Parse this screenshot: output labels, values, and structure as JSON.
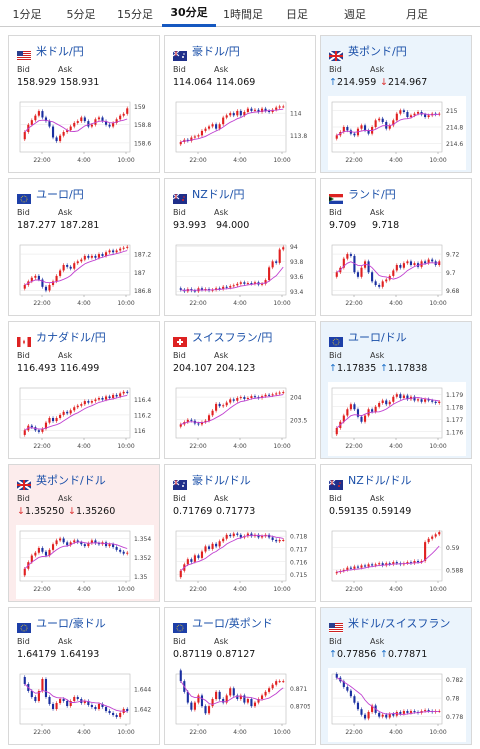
{
  "tabs": [
    "1分足",
    "5分足",
    "15分足",
    "30分足",
    "1時間足",
    "日足",
    "週足",
    "月足"
  ],
  "active_tab": 3,
  "bid_label": "Bid",
  "ask_label": "Ask",
  "colors": {
    "up": "#e02020",
    "down": "#1a2fa0",
    "ma": "#c040d0",
    "tab_active": "#1558c0",
    "highlight_up": "#ebf4fc",
    "highlight_down": "#fcecec"
  },
  "cards": [
    {
      "name": "米ドル/円",
      "flag": "us",
      "bid": "158.929",
      "ask": "158.931",
      "state": "none",
      "bid_arrow": "",
      "ask_arrow": "",
      "chart": {
        "xticks": [
          "22:00",
          "4:00",
          "10:00"
        ],
        "yticks": [
          "159",
          "158.8",
          "158.6"
        ],
        "ylim": [
          158.5,
          159.05
        ]
      }
    },
    {
      "name": "豪ドル/円",
      "flag": "au",
      "bid": "114.064",
      "ask": "114.069",
      "state": "none",
      "bid_arrow": "",
      "ask_arrow": "",
      "chart": {
        "xticks": [
          "22:00",
          "4:00",
          "10:00"
        ],
        "yticks": [
          "114",
          "113.8"
        ],
        "ylim": [
          113.65,
          114.1
        ]
      }
    },
    {
      "name": "英ポンド/円",
      "flag": "gb",
      "bid": "214.959",
      "ask": "214.967",
      "state": "up",
      "bid_arrow": "↑",
      "ask_arrow": "↓",
      "chart": {
        "xticks": [
          "22:00",
          "4:00",
          "10:00"
        ],
        "yticks": [
          "215",
          "214.8",
          "214.6"
        ],
        "ylim": [
          214.5,
          215.1
        ]
      }
    },
    {
      "name": "ユーロ/円",
      "flag": "eu",
      "bid": "187.277",
      "ask": "187.281",
      "state": "none",
      "bid_arrow": "",
      "ask_arrow": "",
      "chart": {
        "xticks": [
          "22:00",
          "4:00",
          "10:00"
        ],
        "yticks": [
          "187.2",
          "187",
          "186.8"
        ],
        "ylim": [
          186.75,
          187.3
        ]
      }
    },
    {
      "name": "NZドル/円",
      "flag": "nz",
      "bid": "93.993",
      "ask": "94.000",
      "state": "none",
      "bid_arrow": "",
      "ask_arrow": "",
      "chart": {
        "xticks": [
          "22:00",
          "4:00",
          "10:00"
        ],
        "yticks": [
          "94",
          "93.8",
          "93.6",
          "93.4"
        ],
        "ylim": [
          93.35,
          94.02
        ]
      }
    },
    {
      "name": "ランド/円",
      "flag": "za",
      "bid": "9.709",
      "ask": "9.718",
      "state": "none",
      "bid_arrow": "",
      "ask_arrow": "",
      "chart": {
        "xticks": [
          "22:00",
          "4:00",
          "10:00"
        ],
        "yticks": [
          "9.72",
          "9.7",
          "9.68"
        ],
        "ylim": [
          9.675,
          9.73
        ]
      }
    },
    {
      "name": "カナダドル/円",
      "flag": "ca",
      "bid": "116.493",
      "ask": "116.499",
      "state": "none",
      "bid_arrow": "",
      "ask_arrow": "",
      "chart": {
        "xticks": [
          "22:00",
          "4:00",
          "10:00"
        ],
        "yticks": [
          "116.4",
          "116.2",
          "116"
        ],
        "ylim": [
          115.9,
          116.55
        ]
      }
    },
    {
      "name": "スイスフラン/円",
      "flag": "ch",
      "bid": "204.107",
      "ask": "204.123",
      "state": "none",
      "bid_arrow": "",
      "ask_arrow": "",
      "chart": {
        "xticks": [
          "22:00",
          "4:00",
          "10:00"
        ],
        "yticks": [
          "204",
          "203.5"
        ],
        "ylim": [
          203.1,
          204.2
        ]
      }
    },
    {
      "name": "ユーロ/ドル",
      "flag": "eu",
      "bid": "1.17835",
      "ask": "1.17838",
      "state": "up",
      "bid_arrow": "↑",
      "ask_arrow": "↑",
      "chart": {
        "xticks": [
          "22:00",
          "4:00",
          "10:00"
        ],
        "yticks": [
          "1.179",
          "1.178",
          "1.177",
          "1.176"
        ],
        "ylim": [
          1.1755,
          1.1795
        ]
      }
    },
    {
      "name": "英ポンド/ドル",
      "flag": "gb",
      "bid": "1.35250",
      "ask": "1.35260",
      "state": "down",
      "bid_arrow": "↓",
      "ask_arrow": "↓",
      "chart": {
        "xticks": [
          "22:00",
          "4:00",
          "10:00"
        ],
        "yticks": [
          "1.354",
          "1.352",
          "1.35"
        ],
        "ylim": [
          1.3495,
          1.3548
        ]
      }
    },
    {
      "name": "豪ドル/ドル",
      "flag": "au",
      "bid": "0.71769",
      "ask": "0.71773",
      "state": "none",
      "bid_arrow": "",
      "ask_arrow": "",
      "chart": {
        "xticks": [
          "22:00",
          "4:00",
          "10:00"
        ],
        "yticks": [
          "0.718",
          "0.717",
          "0.716",
          "0.715"
        ],
        "ylim": [
          0.7145,
          0.7184
        ]
      }
    },
    {
      "name": "NZドル/ドル",
      "flag": "nz",
      "bid": "0.59135",
      "ask": "0.59149",
      "state": "none",
      "bid_arrow": "",
      "ask_arrow": "",
      "chart": {
        "xticks": [
          "22:00",
          "4:00",
          "10:00"
        ],
        "yticks": [
          "0.59",
          "0.588"
        ],
        "ylim": [
          0.587,
          0.5915
        ]
      }
    },
    {
      "name": "ユーロ/豪ドル",
      "flag": "eu",
      "bid": "1.64179",
      "ask": "1.64193",
      "state": "none",
      "bid_arrow": "",
      "ask_arrow": "",
      "chart": {
        "xticks": [
          "22:00",
          "4:00",
          "10:00"
        ],
        "yticks": [
          "1.644",
          "1.642"
        ],
        "ylim": [
          1.6405,
          1.6455
        ]
      }
    },
    {
      "name": "ユーロ/英ポンド",
      "flag": "eu",
      "bid": "0.87119",
      "ask": "0.87127",
      "state": "none",
      "bid_arrow": "",
      "ask_arrow": "",
      "chart": {
        "xticks": [
          "22:00",
          "4:00",
          "10:00"
        ],
        "yticks": [
          "0.871",
          "0.8705"
        ],
        "ylim": [
          0.87,
          0.8714
        ]
      }
    },
    {
      "name": "米ドル/スイスフラン",
      "flag": "us",
      "bid": "0.77856",
      "ask": "0.77871",
      "state": "up",
      "bid_arrow": "↑",
      "ask_arrow": "↑",
      "chart": {
        "xticks": [
          "22:00",
          "4:00",
          "10:00"
        ],
        "yticks": [
          "0.782",
          "0.78",
          "0.778"
        ],
        "ylim": [
          0.7772,
          0.7826
        ]
      }
    }
  ],
  "chart_data": [
    {
      "type": "candlestick",
      "series": [
        {
          "values": [
            158.72,
            158.8,
            158.85,
            158.9,
            158.95,
            158.88,
            158.84,
            158.78,
            158.66,
            158.62,
            158.68,
            158.72,
            158.74,
            158.78,
            158.82,
            158.84,
            158.88,
            158.84,
            158.78,
            158.8,
            158.86,
            158.88,
            158.84,
            158.8,
            158.78,
            158.82,
            158.86,
            158.9,
            158.92,
            158.98
          ]
        }
      ]
    },
    {
      "type": "candlestick",
      "series": [
        {
          "values": [
            113.74,
            113.76,
            113.75,
            113.78,
            113.79,
            113.8,
            113.84,
            113.86,
            113.88,
            113.9,
            113.86,
            113.9,
            113.96,
            113.98,
            114.0,
            113.98,
            114.02,
            113.98,
            114.01,
            114.04,
            114.02,
            114.03,
            114.01,
            114.04,
            114.02,
            114.01,
            114.03,
            114.05,
            114.06,
            114.06
          ]
        }
      ]
    },
    {
      "type": "candlestick",
      "series": [
        {
          "values": [
            214.7,
            214.74,
            214.8,
            214.76,
            214.72,
            214.7,
            214.78,
            214.82,
            214.76,
            214.72,
            214.8,
            214.88,
            214.9,
            214.86,
            214.78,
            214.82,
            214.88,
            214.96,
            215.0,
            214.98,
            214.92,
            214.94,
            214.96,
            214.98,
            214.95,
            214.92,
            214.94,
            214.96,
            214.95,
            214.96
          ]
        }
      ]
    },
    {
      "type": "candlestick",
      "series": [
        {
          "values": [
            186.86,
            186.9,
            186.94,
            186.96,
            186.92,
            186.84,
            186.8,
            186.86,
            186.9,
            186.96,
            187.02,
            187.08,
            187.06,
            187.04,
            187.1,
            187.12,
            187.14,
            187.18,
            187.16,
            187.18,
            187.16,
            187.2,
            187.18,
            187.22,
            187.24,
            187.22,
            187.24,
            187.26,
            187.27,
            187.28
          ]
        }
      ]
    },
    {
      "type": "candlestick",
      "series": [
        {
          "values": [
            93.42,
            93.4,
            93.43,
            93.41,
            93.4,
            93.44,
            93.42,
            93.43,
            93.41,
            93.42,
            93.44,
            93.43,
            93.46,
            93.45,
            93.47,
            93.48,
            93.5,
            93.52,
            93.5,
            93.51,
            93.5,
            93.52,
            93.49,
            93.5,
            93.55,
            93.72,
            93.8,
            93.78,
            93.96,
            93.99
          ]
        }
      ]
    },
    {
      "type": "candlestick",
      "series": [
        {
          "values": [
            9.7,
            9.705,
            9.715,
            9.72,
            9.718,
            9.7,
            9.695,
            9.705,
            9.712,
            9.7,
            9.69,
            9.686,
            9.684,
            9.69,
            9.692,
            9.696,
            9.702,
            9.708,
            9.705,
            9.71,
            9.712,
            9.708,
            9.71,
            9.706,
            9.712,
            9.71,
            9.714,
            9.712,
            9.708,
            9.712
          ]
        }
      ]
    },
    {
      "type": "candlestick",
      "series": [
        {
          "values": [
            116.0,
            116.06,
            116.04,
            116.0,
            115.98,
            116.02,
            116.1,
            116.16,
            116.12,
            116.16,
            116.2,
            116.24,
            116.22,
            116.26,
            116.3,
            116.32,
            116.34,
            116.38,
            116.36,
            116.38,
            116.4,
            116.42,
            116.4,
            116.44,
            116.42,
            116.46,
            116.44,
            116.48,
            116.5,
            116.49
          ]
        }
      ]
    },
    {
      "type": "candlestick",
      "series": [
        {
          "values": [
            203.4,
            203.45,
            203.5,
            203.48,
            203.42,
            203.4,
            203.45,
            203.48,
            203.6,
            203.7,
            203.85,
            203.8,
            203.82,
            203.88,
            203.95,
            203.92,
            203.98,
            204.0,
            203.96,
            203.98,
            204.02,
            204.0,
            203.98,
            204.02,
            204.05,
            204.04,
            204.06,
            204.08,
            204.1,
            204.11
          ]
        }
      ]
    },
    {
      "type": "candlestick",
      "series": [
        {
          "values": [
            1.1763,
            1.1768,
            1.1773,
            1.1778,
            1.1782,
            1.1778,
            1.1772,
            1.1768,
            1.1773,
            1.1778,
            1.1776,
            1.178,
            1.1783,
            1.1785,
            1.1782,
            1.1784,
            1.1788,
            1.179,
            1.1787,
            1.1789,
            1.1786,
            1.1788,
            1.1785,
            1.1786,
            1.1784,
            1.1786,
            1.1785,
            1.1784,
            1.1783,
            1.1784
          ]
        }
      ]
    },
    {
      "type": "candlestick",
      "series": [
        {
          "values": [
            1.3508,
            1.3515,
            1.3522,
            1.3525,
            1.353,
            1.3526,
            1.3522,
            1.3528,
            1.3534,
            1.3538,
            1.354,
            1.3536,
            1.3533,
            1.3536,
            1.3538,
            1.3536,
            1.3534,
            1.3532,
            1.3535,
            1.3538,
            1.3535,
            1.3534,
            1.3536,
            1.3532,
            1.3534,
            1.3531,
            1.3528,
            1.3526,
            1.3524,
            1.3525
          ]
        }
      ]
    },
    {
      "type": "candlestick",
      "series": [
        {
          "values": [
            0.7153,
            0.7158,
            0.7162,
            0.716,
            0.7165,
            0.7163,
            0.7168,
            0.7172,
            0.717,
            0.7174,
            0.7172,
            0.7176,
            0.7178,
            0.7181,
            0.718,
            0.7182,
            0.7181,
            0.7179,
            0.718,
            0.7182,
            0.718,
            0.7181,
            0.7179,
            0.718,
            0.7181,
            0.7179,
            0.7177,
            0.7176,
            0.7177,
            0.7177
          ]
        }
      ]
    },
    {
      "type": "candlestick",
      "series": [
        {
          "values": [
            0.5878,
            0.5879,
            0.588,
            0.5882,
            0.5881,
            0.5883,
            0.5882,
            0.5884,
            0.5883,
            0.5885,
            0.5884,
            0.5885,
            0.5886,
            0.5884,
            0.5886,
            0.5885,
            0.5887,
            0.5886,
            0.5885,
            0.5886,
            0.5887,
            0.5886,
            0.5888,
            0.5887,
            0.5888,
            0.5905,
            0.5908,
            0.591,
            0.5912,
            0.5914
          ]
        }
      ]
    },
    {
      "type": "candlestick",
      "series": [
        {
          "values": [
            1.6445,
            1.6438,
            1.6432,
            1.6428,
            1.6438,
            1.645,
            1.6432,
            1.6425,
            1.642,
            1.6426,
            1.643,
            1.6428,
            1.6423,
            1.6428,
            1.6432,
            1.643,
            1.6426,
            1.6428,
            1.6424,
            1.6422,
            1.642,
            1.6425,
            1.6422,
            1.6418,
            1.6416,
            1.6414,
            1.6412,
            1.6416,
            1.642,
            1.6418
          ]
        }
      ]
    },
    {
      "type": "candlestick",
      "series": [
        {
          "values": [
            0.8712,
            0.8709,
            0.8706,
            0.8704,
            0.8706,
            0.8708,
            0.8705,
            0.8703,
            0.8705,
            0.8707,
            0.8709,
            0.8707,
            0.8706,
            0.8708,
            0.871,
            0.8708,
            0.8707,
            0.8708,
            0.8706,
            0.8707,
            0.8705,
            0.8706,
            0.8707,
            0.8708,
            0.8709,
            0.871,
            0.8711,
            0.8712,
            0.8712,
            0.8712
          ]
        }
      ]
    },
    {
      "type": "candlestick",
      "series": [
        {
          "values": [
            0.7822,
            0.7818,
            0.7812,
            0.7808,
            0.7802,
            0.7795,
            0.7788,
            0.7782,
            0.7778,
            0.7785,
            0.7792,
            0.7784,
            0.778,
            0.7782,
            0.7779,
            0.7783,
            0.7781,
            0.7785,
            0.7783,
            0.7786,
            0.7784,
            0.7786,
            0.7785,
            0.7784,
            0.7786,
            0.7787,
            0.7786,
            0.7785,
            0.7786,
            0.7786
          ]
        }
      ]
    }
  ]
}
